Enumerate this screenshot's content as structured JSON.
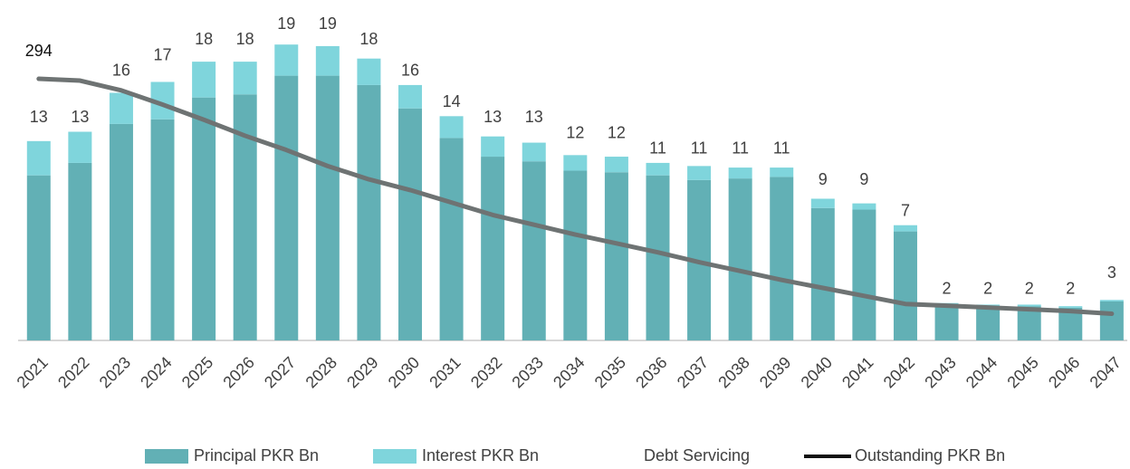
{
  "chart_data": {
    "type": "bar",
    "stacked": true,
    "categories": [
      "2021",
      "2022",
      "2023",
      "2024",
      "2025",
      "2026",
      "2027",
      "2028",
      "2029",
      "2030",
      "2031",
      "2032",
      "2033",
      "2034",
      "2035",
      "2036",
      "2037",
      "2038",
      "2039",
      "2040",
      "2041",
      "2042",
      "2043",
      "2044",
      "2045",
      "2046",
      "2047"
    ],
    "ylim": [
      0,
      20
    ],
    "y2lim": [
      0,
      350
    ],
    "series": [
      {
        "name": "Principal PKR Bn",
        "color": "#62b0b5",
        "mark": "bar",
        "values": [
          10.6,
          11.4,
          13.9,
          14.2,
          15.6,
          15.8,
          17.0,
          17.0,
          16.4,
          14.9,
          13.0,
          11.8,
          11.5,
          10.9,
          10.8,
          10.6,
          10.3,
          10.4,
          10.5,
          8.5,
          8.4,
          7.0,
          2.3,
          2.2,
          2.2,
          2.1,
          2.5
        ]
      },
      {
        "name": "Interest PKR Bn",
        "color": "#7fd5dc",
        "mark": "bar",
        "values": [
          2.2,
          2.0,
          2.0,
          2.4,
          2.3,
          2.1,
          2.0,
          1.9,
          1.7,
          1.5,
          1.4,
          1.3,
          1.2,
          1.0,
          1.0,
          0.8,
          0.9,
          0.7,
          0.6,
          0.6,
          0.4,
          0.4,
          0.1,
          0.1,
          0.1,
          0.1,
          0.1
        ]
      },
      {
        "name": "Debt Servicing",
        "mark": "label",
        "values": [
          13,
          13,
          16,
          17,
          18,
          18,
          19,
          19,
          18,
          16,
          14,
          13,
          13,
          12,
          12,
          11,
          11,
          11,
          11,
          9,
          9,
          7,
          2,
          2,
          2,
          2,
          3
        ]
      },
      {
        "name": "Outstanding PKR Bn",
        "color": "#6e7373",
        "mark": "line",
        "axis": "y2",
        "values": [
          294,
          292,
          281,
          265,
          248,
          230,
          214,
          196,
          181,
          169,
          155,
          141,
          130,
          119,
          109,
          99,
          88,
          78,
          68,
          59,
          50,
          41,
          39,
          37,
          35,
          33,
          30
        ],
        "value_labels": [
          "294",
          null,
          null,
          null,
          null,
          null,
          null,
          null,
          null,
          null,
          null,
          null,
          null,
          null,
          null,
          null,
          null,
          null,
          null,
          null,
          null,
          null,
          null,
          null,
          null,
          null,
          null
        ]
      }
    ]
  }
}
